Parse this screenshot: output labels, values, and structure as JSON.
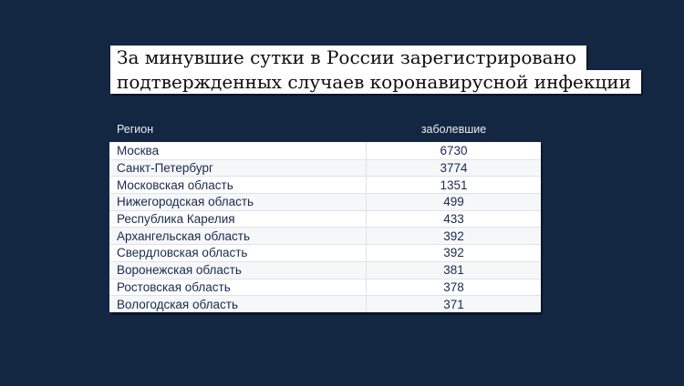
{
  "title": {
    "line1": "За минувшие сутки в России зарегистрировано",
    "line2": "подтвержденных случаев коронавирусной инфекции"
  },
  "chart_data": {
    "type": "table",
    "title": "За минувшие сутки в России зарегистрировано подтвержденных случаев коронавирусной инфекции",
    "columns": {
      "region": "Регион",
      "cases": "заболевшие"
    },
    "rows": [
      {
        "region": "Москва",
        "cases": 6730
      },
      {
        "region": "Санкт-Петербург",
        "cases": 3774
      },
      {
        "region": "Московская область",
        "cases": 1351
      },
      {
        "region": "Нижегородская область",
        "cases": 499
      },
      {
        "region": "Республика Карелия",
        "cases": 433
      },
      {
        "region": "Архангельская область",
        "cases": 392
      },
      {
        "region": "Свердловская область",
        "cases": 392
      },
      {
        "region": "Воронежская область",
        "cases": 381
      },
      {
        "region": "Ростовская область",
        "cases": 378
      },
      {
        "region": "Вологодская область",
        "cases": 371
      }
    ]
  },
  "colors": {
    "background": "#132642",
    "title_box_bg": "#ffffff",
    "title_text": "#0d0d0d",
    "header_text": "#e9edf3",
    "cell_text": "#182b4d",
    "row_bg": "#ffffff",
    "row_alt_bg": "#f6f7f9",
    "divider": "#dfe2e6"
  }
}
